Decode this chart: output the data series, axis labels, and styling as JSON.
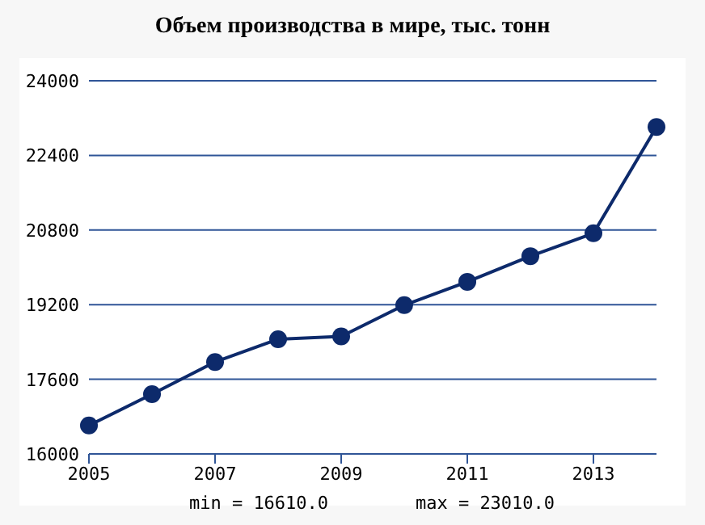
{
  "chart_data": {
    "type": "line",
    "title": "Объем производства в мире, тыс. тонн",
    "x": [
      2005,
      2006,
      2007,
      2008,
      2009,
      2010,
      2011,
      2012,
      2013,
      2014
    ],
    "series": [
      {
        "color": "#0d2a6b",
        "values": [
          16610,
          17280,
          17970,
          18460,
          18520,
          19190,
          19690,
          20240,
          20730,
          23010
        ]
      }
    ],
    "xlim": [
      2005,
      2014
    ],
    "xticks": [
      2005,
      2007,
      2009,
      2011,
      2013
    ],
    "ylim": [
      16000,
      24000
    ],
    "yticks": [
      16000,
      17600,
      19200,
      20800,
      22400,
      24000
    ],
    "grid": "y",
    "marker": "circle",
    "line_style": "solid",
    "annotations": [
      "min = 16610.0",
      "max = 23010.0"
    ]
  }
}
